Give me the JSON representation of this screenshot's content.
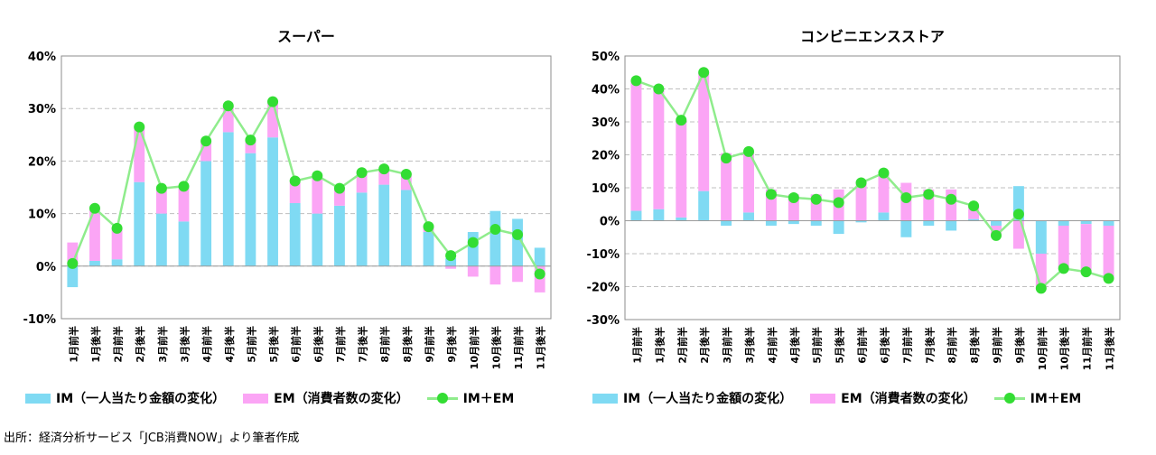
{
  "colors": {
    "im": "#7fdaf3",
    "em": "#fba5f5",
    "line": "#8fec8c",
    "marker": "#33dd33",
    "grid": "#bfbfbf"
  },
  "source": "出所：経済分析サービス「JCB消費NOW」より筆者作成",
  "chart_data": [
    {
      "type": "bar",
      "title": "スーパー",
      "ylim": [
        -10,
        40
      ],
      "yticks": [
        "40%",
        "30%",
        "20%",
        "10%",
        "0%",
        "-10%"
      ],
      "tick_values": [
        40,
        30,
        20,
        10,
        0,
        -10
      ],
      "categories": [
        "1月前半",
        "1月後半",
        "2月前半",
        "2月後半",
        "3月前半",
        "3月後半",
        "4月前半",
        "4月後半",
        "5月前半",
        "5月後半",
        "6月前半",
        "6月後半",
        "7月前半",
        "7月後半",
        "8月前半",
        "8月後半",
        "9月前半",
        "9月後半",
        "10月前半",
        "10月後半",
        "11月前半",
        "11月後半"
      ],
      "series": [
        {
          "name": "IM（一人当たり金額の変化）",
          "kind": "bar",
          "values": [
            -4.0,
            1.0,
            1.3,
            16.0,
            10.0,
            8.5,
            20.0,
            25.5,
            21.5,
            24.5,
            12.0,
            10.0,
            11.5,
            14.0,
            15.5,
            14.5,
            6.5,
            1.5,
            6.5,
            10.5,
            9.0,
            3.5
          ]
        },
        {
          "name": "EM（消費者数の変化）",
          "kind": "bar",
          "values": [
            4.5,
            10.0,
            6.0,
            10.5,
            4.5,
            6.5,
            4.0,
            5.0,
            2.5,
            7.0,
            4.0,
            7.0,
            3.5,
            4.0,
            3.0,
            3.0,
            1.0,
            -0.5,
            -2.0,
            -3.5,
            -3.0,
            -5.0
          ]
        },
        {
          "name": "IM＋EM",
          "kind": "line",
          "values": [
            0.5,
            11.0,
            7.2,
            26.5,
            14.8,
            15.2,
            23.8,
            30.5,
            24.0,
            31.3,
            16.2,
            17.2,
            14.8,
            17.8,
            18.5,
            17.5,
            7.5,
            2.0,
            4.5,
            7.0,
            6.0,
            -1.5
          ]
        }
      ],
      "legend": [
        "IM（一人当たり金額の変化）",
        "EM（消費者数の変化）",
        "IM＋EM"
      ]
    },
    {
      "type": "bar",
      "title": "コンビニエンスストア",
      "ylim": [
        -30,
        50
      ],
      "yticks": [
        "50%",
        "40%",
        "30%",
        "20%",
        "10%",
        "0%",
        "-10%",
        "-20%",
        "-30%"
      ],
      "tick_values": [
        50,
        40,
        30,
        20,
        10,
        0,
        -10,
        -20,
        -30
      ],
      "categories": [
        "1月前半",
        "1月後半",
        "2月前半",
        "2月後半",
        "3月前半",
        "3月後半",
        "4月前半",
        "4月後半",
        "5月前半",
        "5月後半",
        "6月前半",
        "6月後半",
        "7月前半",
        "7月後半",
        "8月前半",
        "8月後半",
        "9月前半",
        "9月後半",
        "10月前半",
        "10月後半",
        "11月前半",
        "11月後半"
      ],
      "series": [
        {
          "name": "IM（一人当たり金額の変化）",
          "kind": "bar",
          "values": [
            3.0,
            3.5,
            1.0,
            9.0,
            -1.5,
            2.5,
            -1.5,
            -1.0,
            -1.5,
            -4.0,
            -0.5,
            2.5,
            -5.0,
            -1.5,
            -3.0,
            0.5,
            -1.5,
            10.5,
            -10.0,
            -1.5,
            -1.0,
            -1.5
          ]
        },
        {
          "name": "EM（消費者数の変化）",
          "kind": "bar",
          "values": [
            39.5,
            36.5,
            29.5,
            36.0,
            20.5,
            18.5,
            9.5,
            8.0,
            8.0,
            9.5,
            12.0,
            12.0,
            11.5,
            9.5,
            9.5,
            4.0,
            -3.0,
            -8.5,
            -10.5,
            -13.0,
            -15.0,
            -16.0
          ]
        },
        {
          "name": "IM＋EM",
          "kind": "line",
          "values": [
            42.5,
            40.0,
            30.5,
            45.0,
            19.0,
            21.0,
            8.0,
            7.0,
            6.5,
            5.5,
            11.5,
            14.5,
            7.0,
            8.0,
            6.5,
            4.5,
            -4.5,
            2.0,
            -20.5,
            -14.5,
            -15.5,
            -17.5
          ]
        }
      ],
      "legend": [
        "IM（一人当たり金額の変化）",
        "EM（消費者数の変化）",
        "IM＋EM"
      ]
    }
  ]
}
